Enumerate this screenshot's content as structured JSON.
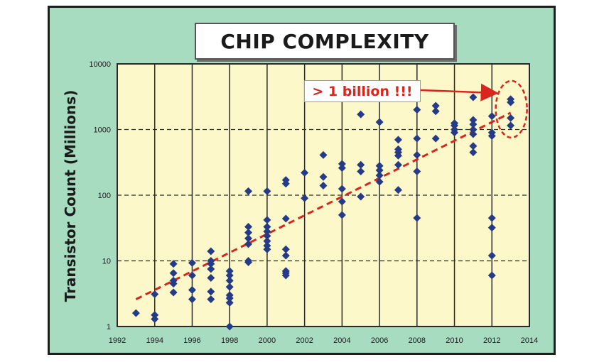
{
  "chart_data": {
    "type": "scatter",
    "title": "CHIP COMPLEXITY",
    "ylabel": "Transistor Count (Millions)",
    "xlabel": "",
    "x_ticks": [
      "1992",
      "1994",
      "1996",
      "1998",
      "2000",
      "2002",
      "2004",
      "2006",
      "2008",
      "2010",
      "2012",
      "2014"
    ],
    "y_ticks": [
      "1",
      "10",
      "100",
      "1000",
      "10000"
    ],
    "xlim": [
      1992,
      2014
    ],
    "ylim": [
      1,
      10000
    ],
    "y_scale": "log",
    "grid": {
      "vertical": "solid",
      "horizontal": "dashed"
    },
    "annotation": {
      "text": "> 1 billion !!!",
      "points_to": {
        "x": 2013,
        "y": 2600
      }
    },
    "trendline": {
      "style": "dashed",
      "from": {
        "x": 1993,
        "y": 2.6
      },
      "to": {
        "x": 2013,
        "y": 1800
      }
    },
    "colors": {
      "frame_bg": "#a7dcc0",
      "plot_bg": "#fcf8c9",
      "point": "#253b86",
      "accent": "#d8261f"
    },
    "points": [
      {
        "x": 1993,
        "y": 1.6
      },
      {
        "x": 1994,
        "y": 3.1
      },
      {
        "x": 1994,
        "y": 1.5
      },
      {
        "x": 1994,
        "y": 1.3
      },
      {
        "x": 1995,
        "y": 9
      },
      {
        "x": 1995,
        "y": 6.5
      },
      {
        "x": 1995,
        "y": 5
      },
      {
        "x": 1995,
        "y": 4.5
      },
      {
        "x": 1995,
        "y": 3.3
      },
      {
        "x": 1996,
        "y": 9.3
      },
      {
        "x": 1996,
        "y": 6
      },
      {
        "x": 1996,
        "y": 3.6
      },
      {
        "x": 1996,
        "y": 2.6
      },
      {
        "x": 1997,
        "y": 14
      },
      {
        "x": 1997,
        "y": 10
      },
      {
        "x": 1997,
        "y": 9
      },
      {
        "x": 1997,
        "y": 7.5
      },
      {
        "x": 1997,
        "y": 5.5
      },
      {
        "x": 1997,
        "y": 3.4
      },
      {
        "x": 1997,
        "y": 2.6
      },
      {
        "x": 1998,
        "y": 7
      },
      {
        "x": 1998,
        "y": 6
      },
      {
        "x": 1998,
        "y": 5
      },
      {
        "x": 1998,
        "y": 4
      },
      {
        "x": 1998,
        "y": 3
      },
      {
        "x": 1998,
        "y": 2.7
      },
      {
        "x": 1998,
        "y": 2.3
      },
      {
        "x": 1998,
        "y": 1
      },
      {
        "x": 1999,
        "y": 115
      },
      {
        "x": 1999,
        "y": 33
      },
      {
        "x": 1999,
        "y": 27
      },
      {
        "x": 1999,
        "y": 22
      },
      {
        "x": 1999,
        "y": 18
      },
      {
        "x": 1999,
        "y": 10
      },
      {
        "x": 1999,
        "y": 9.5
      },
      {
        "x": 2000,
        "y": 115
      },
      {
        "x": 2000,
        "y": 42
      },
      {
        "x": 2000,
        "y": 33
      },
      {
        "x": 2000,
        "y": 28
      },
      {
        "x": 2000,
        "y": 24
      },
      {
        "x": 2000,
        "y": 20
      },
      {
        "x": 2000,
        "y": 17
      },
      {
        "x": 2000,
        "y": 15
      },
      {
        "x": 2001,
        "y": 170
      },
      {
        "x": 2001,
        "y": 150
      },
      {
        "x": 2001,
        "y": 44
      },
      {
        "x": 2001,
        "y": 15
      },
      {
        "x": 2001,
        "y": 12
      },
      {
        "x": 2001,
        "y": 7
      },
      {
        "x": 2001,
        "y": 6.5
      },
      {
        "x": 2001,
        "y": 6
      },
      {
        "x": 2002,
        "y": 220
      },
      {
        "x": 2002,
        "y": 90
      },
      {
        "x": 2003,
        "y": 410
      },
      {
        "x": 2003,
        "y": 190
      },
      {
        "x": 2003,
        "y": 140
      },
      {
        "x": 2004,
        "y": 300
      },
      {
        "x": 2004,
        "y": 260
      },
      {
        "x": 2004,
        "y": 125
      },
      {
        "x": 2004,
        "y": 80
      },
      {
        "x": 2004,
        "y": 50
      },
      {
        "x": 2005,
        "y": 1700
      },
      {
        "x": 2005,
        "y": 290
      },
      {
        "x": 2005,
        "y": 230
      },
      {
        "x": 2005,
        "y": 95
      },
      {
        "x": 2006,
        "y": 1300
      },
      {
        "x": 2006,
        "y": 280
      },
      {
        "x": 2006,
        "y": 240
      },
      {
        "x": 2006,
        "y": 200
      },
      {
        "x": 2006,
        "y": 160
      },
      {
        "x": 2007,
        "y": 700
      },
      {
        "x": 2007,
        "y": 500
      },
      {
        "x": 2007,
        "y": 450
      },
      {
        "x": 2007,
        "y": 400
      },
      {
        "x": 2007,
        "y": 290
      },
      {
        "x": 2007,
        "y": 120
      },
      {
        "x": 2008,
        "y": 2000
      },
      {
        "x": 2008,
        "y": 730
      },
      {
        "x": 2008,
        "y": 410
      },
      {
        "x": 2008,
        "y": 230
      },
      {
        "x": 2008,
        "y": 45
      },
      {
        "x": 2009,
        "y": 2300
      },
      {
        "x": 2009,
        "y": 1900
      },
      {
        "x": 2009,
        "y": 730
      },
      {
        "x": 2010,
        "y": 1250
      },
      {
        "x": 2010,
        "y": 1150
      },
      {
        "x": 2010,
        "y": 1000
      },
      {
        "x": 2010,
        "y": 900
      },
      {
        "x": 2011,
        "y": 3100
      },
      {
        "x": 2011,
        "y": 1400
      },
      {
        "x": 2011,
        "y": 1200
      },
      {
        "x": 2011,
        "y": 1000
      },
      {
        "x": 2011,
        "y": 850
      },
      {
        "x": 2011,
        "y": 560
      },
      {
        "x": 2011,
        "y": 450
      },
      {
        "x": 2012,
        "y": 1600
      },
      {
        "x": 2012,
        "y": 900
      },
      {
        "x": 2012,
        "y": 800
      },
      {
        "x": 2012,
        "y": 45
      },
      {
        "x": 2012,
        "y": 32
      },
      {
        "x": 2012,
        "y": 12
      },
      {
        "x": 2012,
        "y": 6
      },
      {
        "x": 2013,
        "y": 2900
      },
      {
        "x": 2013,
        "y": 2600
      },
      {
        "x": 2013,
        "y": 1500
      },
      {
        "x": 2013,
        "y": 1150
      }
    ]
  }
}
